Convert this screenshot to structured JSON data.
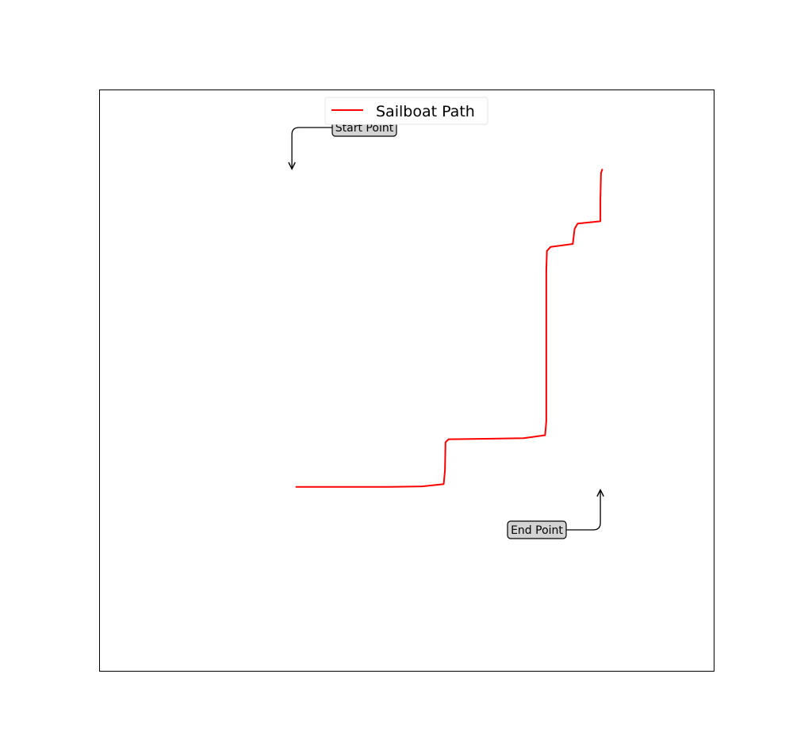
{
  "chart_data": {
    "type": "line",
    "title": "",
    "xlabel": "",
    "ylabel": "",
    "axes_visible": false,
    "grid": false,
    "xlim": [
      0,
      100
    ],
    "ylim": [
      0,
      100
    ],
    "legend": {
      "placement": "top-center",
      "entries": [
        "Sailboat Path"
      ]
    },
    "series": [
      {
        "name": "Sailboat Path",
        "color": "#ff0000",
        "x": [
          32.0,
          47.0,
          52.5,
          56.0,
          56.2,
          56.3,
          56.8,
          64.0,
          69.0,
          72.5,
          72.7,
          72.7,
          72.8,
          73.4,
          77.0,
          77.3,
          77.8,
          81.5,
          81.5,
          81.6,
          81.8
        ],
        "y": [
          31.7,
          31.7,
          31.8,
          32.2,
          34.5,
          39.4,
          39.9,
          40.0,
          40.1,
          40.6,
          43.0,
          69.0,
          72.3,
          73.0,
          73.5,
          76.1,
          77.0,
          77.4,
          81.1,
          85.7,
          86.3
        ]
      }
    ],
    "annotations": [
      {
        "text": "Start Point",
        "arrow_to": {
          "x": 31.3,
          "y": 86.4
        },
        "box_fill": "#d3d3d3"
      },
      {
        "text": "End Point",
        "arrow_to": {
          "x": 81.5,
          "y": 31.2
        },
        "box_fill": "#d3d3d3"
      }
    ]
  }
}
